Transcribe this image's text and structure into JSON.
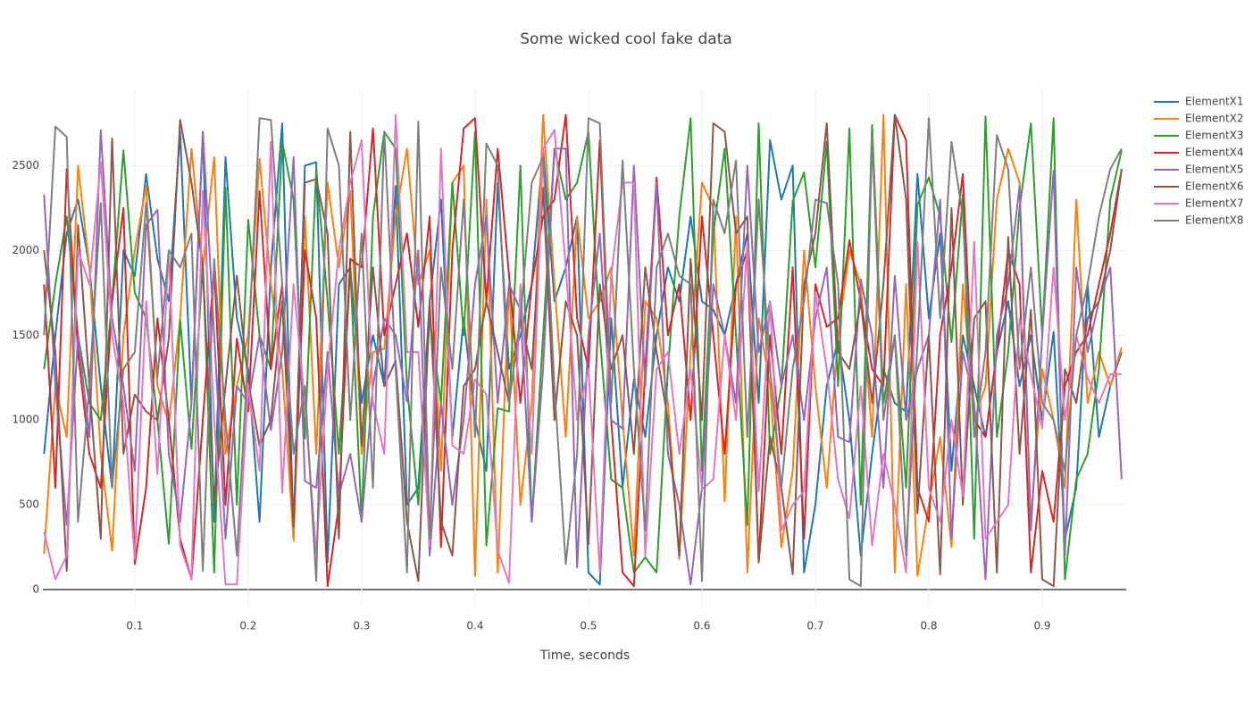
{
  "chart_data": {
    "type": "line",
    "title": "Some wicked cool fake data",
    "x_label": "Time, seconds",
    "x": [
      0.02,
      0.03,
      0.04,
      0.05,
      0.06,
      0.07,
      0.08,
      0.09,
      0.1,
      0.11,
      0.12,
      0.13,
      0.14,
      0.15,
      0.16,
      0.17,
      0.18,
      0.19,
      0.2,
      0.21,
      0.22,
      0.23,
      0.24,
      0.25,
      0.26,
      0.27,
      0.28,
      0.29,
      0.3,
      0.31,
      0.32,
      0.33,
      0.34,
      0.35,
      0.36,
      0.37,
      0.38,
      0.39,
      0.4,
      0.41,
      0.42,
      0.43,
      0.44,
      0.45,
      0.46,
      0.47,
      0.48,
      0.49,
      0.5,
      0.51,
      0.52,
      0.53,
      0.54,
      0.55,
      0.56,
      0.57,
      0.58,
      0.59,
      0.6,
      0.61,
      0.62,
      0.63,
      0.64,
      0.65,
      0.66,
      0.67,
      0.68,
      0.69,
      0.7,
      0.71,
      0.72,
      0.73,
      0.74,
      0.75,
      0.76,
      0.77,
      0.78,
      0.79,
      0.8,
      0.81,
      0.82,
      0.83,
      0.84,
      0.85,
      0.86,
      0.87,
      0.88,
      0.89,
      0.9,
      0.91,
      0.92,
      0.93,
      0.94,
      0.95,
      0.96,
      0.97
    ],
    "series": [
      {
        "name": "ElementX1",
        "color": "#1f77b4",
        "values": [
          800,
          1500,
          2100,
          2300,
          1900,
          1200,
          600,
          2000,
          1850,
          2450,
          1950,
          1700,
          2700,
          1100,
          2700,
          400,
          2550,
          1600,
          1300,
          400,
          1900,
          2750,
          300,
          2500,
          2520,
          160,
          1800,
          1900,
          1100,
          1500,
          1200,
          2380,
          500,
          600,
          1700,
          2300,
          900,
          1600,
          1000,
          700,
          2400,
          1300,
          1500,
          1800,
          2600,
          1700,
          1900,
          2200,
          100,
          30,
          1600,
          600,
          1240,
          900,
          1500,
          1900,
          1700,
          2200,
          1700,
          1650,
          1500,
          1800,
          2100,
          1100,
          2650,
          2300,
          2500,
          100,
          500,
          1200,
          1470,
          1000,
          200,
          800,
          1300,
          1100,
          1050,
          2450,
          1600,
          2100,
          700,
          1500,
          1200,
          900,
          1400,
          1700,
          1200,
          1500,
          1000,
          1520,
          300,
          600,
          1800,
          900,
          1200,
          1400
        ]
      },
      {
        "name": "ElementX2",
        "color": "#ff7f0e",
        "values": [
          210,
          1200,
          900,
          2500,
          1900,
          800,
          230,
          1500,
          2000,
          2380,
          1200,
          980,
          1600,
          2600,
          1900,
          2550,
          800,
          1200,
          1500,
          2540,
          1800,
          1300,
          290,
          2200,
          800,
          2400,
          1900,
          2350,
          800,
          1400,
          1420,
          2200,
          2600,
          1800,
          2000,
          700,
          2400,
          2500,
          80,
          2300,
          100,
          1800,
          500,
          1100,
          2800,
          1800,
          900,
          2200,
          1600,
          1700,
          1900,
          1000,
          200,
          1700,
          1600,
          1100,
          180,
          1400,
          2400,
          2250,
          520,
          2200,
          100,
          1600,
          1200,
          250,
          700,
          2000,
          1200,
          600,
          1500,
          2000,
          1800,
          900,
          2800,
          100,
          1800,
          80,
          500,
          900,
          250,
          1800,
          1000,
          1200,
          2300,
          2600,
          2400,
          400,
          1300,
          1000,
          600,
          2300,
          1100,
          1400,
          1200,
          1430
        ]
      },
      {
        "name": "ElementX3",
        "color": "#2ca02c",
        "values": [
          1300,
          1800,
          2200,
          1500,
          1100,
          1000,
          1700,
          2590,
          1750,
          1600,
          1000,
          270,
          1590,
          830,
          1920,
          100,
          2370,
          500,
          2180,
          1500,
          1300,
          2640,
          2300,
          890,
          2480,
          1700,
          800,
          1900,
          400,
          2200,
          2700,
          2600,
          1200,
          500,
          1600,
          1100,
          2400,
          1500,
          2700,
          260,
          1070,
          1050,
          2500,
          400,
          1500,
          2600,
          2300,
          2400,
          2700,
          1500,
          650,
          600,
          100,
          190,
          100,
          1300,
          2200,
          2780,
          700,
          2100,
          2600,
          1500,
          380,
          2750,
          800,
          1200,
          2290,
          2460,
          1900,
          2640,
          1200,
          2720,
          500,
          2740,
          1100,
          1500,
          600,
          2270,
          2430,
          2200,
          1460,
          2330,
          300,
          2790,
          900,
          1400,
          2250,
          2750,
          1500,
          2780,
          60,
          650,
          800,
          1300,
          2300,
          2590
        ]
      },
      {
        "name": "ElementX4",
        "color": "#d62728",
        "values": [
          1800,
          600,
          2480,
          1400,
          800,
          600,
          1700,
          2250,
          150,
          600,
          1600,
          1000,
          300,
          60,
          1000,
          1900,
          500,
          1480,
          1050,
          2350,
          1300,
          1800,
          400,
          2000,
          1600,
          20,
          500,
          1950,
          1900,
          2720,
          1500,
          1800,
          2100,
          1550,
          2200,
          250,
          2000,
          2720,
          2780,
          1700,
          2600,
          1850,
          1100,
          1800,
          2200,
          2300,
          2800,
          1600,
          1300,
          2650,
          1000,
          100,
          20,
          1300,
          2430,
          1500,
          1800,
          1000,
          2200,
          1500,
          800,
          1800,
          2000,
          170,
          1500,
          800,
          1900,
          300,
          1800,
          1550,
          1600,
          2060,
          1700,
          1300,
          1200,
          2800,
          2650,
          600,
          400,
          1500,
          1900,
          2450,
          1000,
          900,
          1400,
          2000,
          1800,
          100,
          700,
          400,
          1200,
          1400,
          1500,
          1800,
          2100,
          2480
        ]
      },
      {
        "name": "ElementX5",
        "color": "#9467bd",
        "values": [
          2330,
          1200,
          380,
          1500,
          900,
          2710,
          1600,
          1200,
          700,
          2150,
          2240,
          800,
          400,
          1100,
          2700,
          1500,
          300,
          1200,
          1100,
          1500,
          940,
          1400,
          2550,
          640,
          600,
          1400,
          560,
          800,
          400,
          1200,
          1600,
          1500,
          1110,
          2000,
          200,
          1100,
          500,
          1000,
          1800,
          2200,
          1100,
          1800,
          1650,
          400,
          1300,
          2600,
          2600,
          130,
          1500,
          2100,
          1000,
          950,
          2500,
          1200,
          2400,
          800,
          500,
          30,
          600,
          1800,
          1500,
          1100,
          2500,
          1400,
          1700,
          1200,
          1500,
          1000,
          1600,
          1900,
          900,
          870,
          1830,
          1500,
          600,
          1850,
          1000,
          1300,
          1500,
          2300,
          300,
          1400,
          1100,
          60,
          1500,
          1800,
          2380,
          350,
          1500,
          2470,
          200,
          1900,
          1400,
          1700,
          1900,
          650
        ]
      },
      {
        "name": "ElementX6",
        "color": "#8c564b",
        "values": [
          2000,
          1400,
          110,
          2150,
          1200,
          300,
          2660,
          800,
          1150,
          1050,
          1000,
          1480,
          2770,
          2400,
          1900,
          500,
          1200,
          1850,
          1230,
          850,
          1000,
          1700,
          370,
          2400,
          2420,
          2100,
          300,
          2700,
          850,
          1900,
          1200,
          1350,
          400,
          50,
          1700,
          400,
          200,
          1200,
          1300,
          1700,
          1400,
          1100,
          1600,
          1300,
          2370,
          1000,
          1700,
          1500,
          270,
          1800,
          1300,
          1500,
          800,
          1900,
          1400,
          1000,
          200,
          1950,
          1000,
          2750,
          2700,
          2100,
          2200,
          160,
          900,
          600,
          90,
          1800,
          2100,
          2750,
          1400,
          1300,
          1700,
          1100,
          1800,
          2800,
          2300,
          450,
          1500,
          90,
          2250,
          500,
          1600,
          1700,
          100,
          2080,
          800,
          1650,
          60,
          20,
          1300,
          1100,
          1600,
          1700,
          2000,
          2480
        ]
      },
      {
        "name": "ElementX7",
        "color": "#e377c2",
        "values": [
          340,
          60,
          200,
          2000,
          1800,
          2520,
          1500,
          1100,
          180,
          1700,
          680,
          2000,
          260,
          60,
          2350,
          1000,
          30,
          30,
          1200,
          700,
          2640,
          570,
          1800,
          1100,
          210,
          1300,
          2000,
          2400,
          2650,
          1100,
          800,
          2800,
          1400,
          1400,
          260,
          2600,
          850,
          800,
          1240,
          1150,
          230,
          40,
          1800,
          800,
          2600,
          2710,
          1900,
          1000,
          1300,
          100,
          1850,
          2400,
          2400,
          200,
          1300,
          1400,
          800,
          1300,
          590,
          650,
          1500,
          1000,
          2050,
          580,
          1700,
          350,
          500,
          580,
          1750,
          1300,
          650,
          420,
          1200,
          260,
          800,
          500,
          100,
          2050,
          600,
          400,
          1000,
          550,
          2050,
          300,
          400,
          500,
          1600,
          1270,
          950,
          1900,
          1000,
          1500,
          1250,
          1100,
          1270,
          1270
        ]
      },
      {
        "name": "ElementX8",
        "color": "#7f7f7f",
        "values": [
          1500,
          2730,
          2670,
          400,
          1200,
          2280,
          600,
          1300,
          1400,
          2280,
          1250,
          2000,
          1900,
          2100,
          110,
          1950,
          1000,
          200,
          1400,
          2780,
          2770,
          1800,
          800,
          1200,
          50,
          2720,
          2500,
          1000,
          2100,
          600,
          2700,
          1300,
          100,
          2760,
          300,
          1900,
          1300,
          2300,
          900,
          2630,
          2500,
          1100,
          1600,
          2400,
          2550,
          1200,
          150,
          800,
          2780,
          2750,
          1100,
          2530,
          1300,
          350,
          1900,
          2100,
          1850,
          1800,
          50,
          2300,
          2100,
          2530,
          900,
          2300,
          1300,
          600,
          1300,
          1700,
          2300,
          2280,
          1800,
          60,
          20,
          2670,
          1000,
          1500,
          200,
          1450,
          2780,
          1600,
          2640,
          2200,
          900,
          1400,
          2680,
          2480,
          1300,
          1900,
          1100,
          1000,
          700,
          1500,
          1800,
          2200,
          2480,
          2600
        ]
      }
    ],
    "xlim": [
      0.019,
      0.974
    ],
    "xticks": [
      0.1,
      0.2,
      0.3,
      0.4,
      0.5,
      0.6,
      0.7,
      0.8,
      0.9
    ],
    "ylim": [
      -100,
      2950
    ],
    "yticks": [
      0,
      500,
      1000,
      1500,
      2000,
      2500
    ],
    "grid": true,
    "legend": "right"
  }
}
